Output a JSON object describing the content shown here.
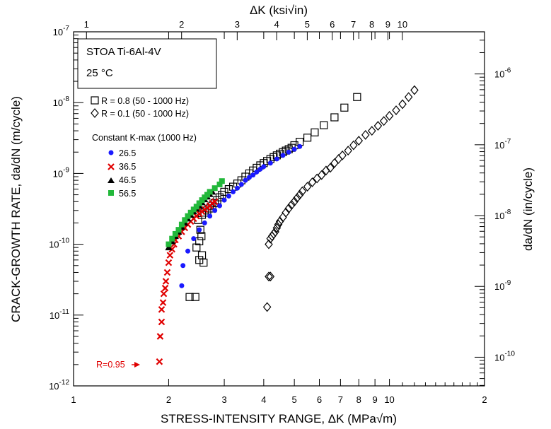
{
  "chart_data": {
    "type": "scatter",
    "title": "",
    "xlabel": "STRESS-INTENSITY RANGE, ΔK (MPa√m)",
    "ylabel": "CRACK-GROWTH RATE, da/dN (m/cycle)",
    "top_xlabel": "ΔK (ksi√in)",
    "right_ylabel": "da/dN (in/cycle)",
    "x_scale": "log",
    "y_scale": "log",
    "xlim": [
      1,
      20
    ],
    "ylim": [
      1e-12,
      1e-07
    ],
    "top_xlim_ksi": [
      0.91,
      18.2
    ],
    "right_ylim_in": [
      3.94e-11,
      3.94e-06
    ],
    "x_ticks": [
      "1",
      "2",
      "3",
      "4",
      "5",
      "6",
      "7",
      "8",
      "9",
      "10",
      "2"
    ],
    "y_ticks": [
      "10-12",
      "10-11",
      "10-10",
      "10-9",
      "10-8",
      "10-7"
    ],
    "top_ticks": [
      "1",
      "2",
      "3",
      "4",
      "5",
      "6",
      "7",
      "8",
      "9",
      "10"
    ],
    "right_ticks": [
      "10-10",
      "10-9",
      "10-8",
      "10-7",
      "10-6"
    ],
    "grid": false,
    "legend_position": "top-left",
    "info_box": {
      "line1": "STOA Ti-6Al-4V",
      "line2": "25 °C"
    },
    "legend_group_title": "Constant K-max (1000 Hz)",
    "annotation": {
      "text": "R=0.95",
      "color": "#e00000",
      "x": 1.87,
      "y": 2.2e-12
    },
    "series": [
      {
        "name": "R = 0.8 (50 - 1000 Hz)",
        "marker": "square",
        "color": "#000000",
        "x": [
          2.33,
          2.43,
          2.5,
          2.55,
          2.58,
          2.45,
          2.5,
          2.54,
          2.52,
          2.48,
          2.55,
          2.6,
          2.65,
          2.7,
          2.75,
          2.8,
          2.85,
          2.9,
          2.95,
          3.0,
          3.1,
          3.2,
          3.3,
          3.4,
          3.5,
          3.6,
          3.7,
          3.8,
          3.9,
          4.0,
          4.1,
          4.2,
          4.3,
          4.4,
          4.5,
          4.6,
          4.7,
          4.8,
          4.9,
          5.0,
          5.2,
          5.5,
          5.8,
          6.2,
          6.7,
          7.2,
          7.9
        ],
        "y": [
          1.8e-11,
          1.8e-11,
          6e-11,
          7e-11,
          5.5e-11,
          9e-11,
          1.1e-10,
          1.3e-10,
          1.6e-10,
          2.2e-10,
          2.6e-10,
          2.8e-10,
          3e-10,
          3.2e-10,
          3.5e-10,
          3.8e-10,
          4.2e-10,
          4.6e-10,
          5e-10,
          5.5e-10,
          6e-10,
          6.5e-10,
          7.2e-10,
          8e-10,
          9e-10,
          1e-09,
          1.1e-09,
          1.2e-09,
          1.3e-09,
          1.4e-09,
          1.5e-09,
          1.6e-09,
          1.7e-09,
          1.8e-09,
          1.9e-09,
          2e-09,
          2.1e-09,
          2.2e-09,
          2.3e-09,
          2.5e-09,
          2.8e-09,
          3.2e-09,
          3.8e-09,
          4.8e-09,
          6.2e-09,
          8.5e-09,
          1.2e-08
        ]
      },
      {
        "name": "R = 0.1 (50 - 1000 Hz)",
        "marker": "diamond",
        "color": "#000000",
        "x": [
          4.1,
          4.15,
          4.2,
          4.15,
          4.2,
          4.25,
          4.3,
          4.35,
          4.4,
          4.45,
          4.5,
          4.6,
          4.7,
          4.8,
          4.9,
          5.0,
          5.1,
          5.2,
          5.3,
          5.5,
          5.7,
          5.9,
          6.1,
          6.3,
          6.5,
          6.7,
          6.9,
          7.1,
          7.4,
          7.7,
          8.0,
          8.4,
          8.8,
          9.2,
          9.6,
          10.0,
          10.5,
          11.0,
          11.5,
          12.0
        ],
        "y": [
          1.3e-11,
          3.5e-11,
          3.5e-11,
          1e-10,
          1.2e-10,
          1.3e-10,
          1.4e-10,
          1.5e-10,
          1.7e-10,
          1.9e-10,
          2.1e-10,
          2.4e-10,
          2.8e-10,
          3.2e-10,
          3.6e-10,
          4e-10,
          4.5e-10,
          5e-10,
          5.6e-10,
          6.5e-10,
          7.5e-10,
          8.5e-10,
          9.5e-10,
          1.1e-09,
          1.2e-09,
          1.4e-09,
          1.6e-09,
          1.8e-09,
          2.1e-09,
          2.5e-09,
          2.9e-09,
          3.5e-09,
          4e-09,
          4.7e-09,
          5.5e-09,
          6.5e-09,
          7.8e-09,
          9.5e-09,
          1.2e-08,
          1.5e-08
        ]
      },
      {
        "name": "26.5",
        "marker": "circle",
        "color": "#1a1aff",
        "x": [
          2.2,
          2.22,
          2.3,
          2.4,
          2.5,
          2.6,
          2.7,
          2.8,
          2.9,
          3.0,
          3.1,
          3.2,
          3.3,
          3.4,
          3.5,
          3.6,
          3.7,
          3.8,
          3.9,
          4.0,
          4.2,
          4.4,
          4.6,
          4.8,
          5.0,
          5.2
        ],
        "y": [
          2.6e-11,
          5e-11,
          8e-11,
          1.2e-10,
          1.6e-10,
          2e-10,
          2.5e-10,
          3e-10,
          3.5e-10,
          4.2e-10,
          4.8e-10,
          5.5e-10,
          6.2e-10,
          7e-10,
          8e-10,
          8.8e-10,
          9.5e-10,
          1.05e-09,
          1.15e-09,
          1.25e-09,
          1.4e-09,
          1.6e-09,
          1.8e-09,
          2e-09,
          2.2e-09,
          2.4e-09
        ]
      },
      {
        "name": "36.5",
        "marker": "x",
        "color": "#e00000",
        "x": [
          1.87,
          1.88,
          1.9,
          1.9,
          1.92,
          1.93,
          1.95,
          1.96,
          1.98,
          2.0,
          2.02,
          2.05,
          2.08,
          2.1,
          2.15,
          2.2,
          2.25,
          2.3,
          2.35,
          2.4,
          2.45,
          2.5,
          2.55,
          2.6,
          2.65,
          2.7,
          2.75,
          2.8
        ],
        "y": [
          2.2e-12,
          5e-12,
          8e-12,
          1.2e-11,
          1.5e-11,
          2e-11,
          2.4e-11,
          3e-11,
          4e-11,
          5.5e-11,
          7e-11,
          8.5e-11,
          1e-10,
          1.15e-10,
          1.3e-10,
          1.5e-10,
          1.7e-10,
          1.9e-10,
          2.1e-10,
          2.3e-10,
          2.5e-10,
          2.7e-10,
          2.9e-10,
          3.1e-10,
          3.3e-10,
          3.5e-10,
          3.8e-10,
          4e-10
        ]
      },
      {
        "name": "46.5",
        "marker": "triangle",
        "color": "#000000",
        "x": [
          2.0,
          2.05,
          2.1,
          2.15,
          2.2,
          2.25,
          2.3,
          2.35,
          2.4,
          2.45,
          2.5,
          2.55,
          2.6,
          2.65,
          2.7,
          2.75
        ],
        "y": [
          9e-11,
          1.1e-10,
          1.3e-10,
          1.5e-10,
          1.75e-10,
          2e-10,
          2.3e-10,
          2.6e-10,
          2.9e-10,
          3.2e-10,
          3.5e-10,
          3.9e-10,
          4.3e-10,
          4.7e-10,
          5.1e-10,
          5.5e-10
        ]
      },
      {
        "name": "56.5",
        "marker": "square-filled",
        "color": "#22b83a",
        "x": [
          2.0,
          2.05,
          2.1,
          2.15,
          2.2,
          2.25,
          2.3,
          2.35,
          2.4,
          2.45,
          2.5,
          2.55,
          2.6,
          2.65,
          2.7,
          2.8,
          2.9,
          2.95
        ],
        "y": [
          1e-10,
          1.2e-10,
          1.4e-10,
          1.6e-10,
          1.9e-10,
          2.2e-10,
          2.5e-10,
          2.8e-10,
          3.1e-10,
          3.4e-10,
          3.8e-10,
          4.2e-10,
          4.6e-10,
          5e-10,
          5.5e-10,
          6.2e-10,
          7e-10,
          7.8e-10
        ]
      }
    ]
  }
}
